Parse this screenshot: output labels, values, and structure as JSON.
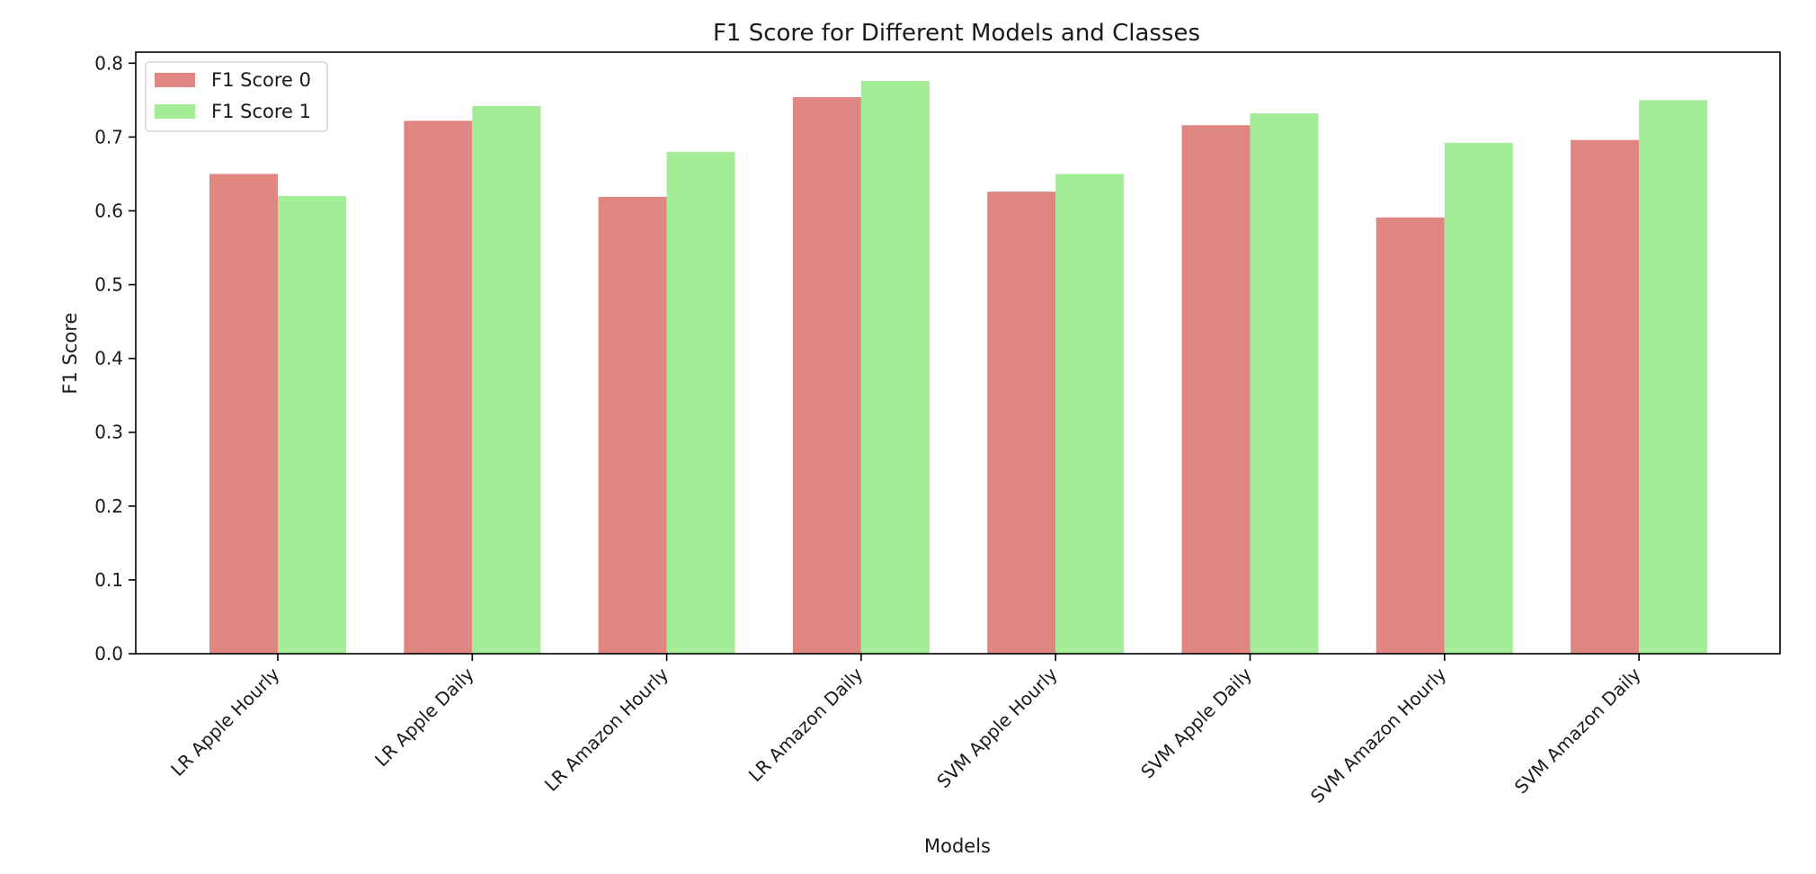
{
  "chart_data": {
    "type": "bar",
    "title": "F1 Score for Different Models and Classes",
    "xlabel": "Models",
    "ylabel": "F1 Score",
    "categories": [
      "LR Apple Hourly",
      "LR Apple Daily",
      "LR Amazon Hourly",
      "LR Amazon Daily",
      "SVM Apple Hourly",
      "SVM Apple Daily",
      "SVM Amazon Hourly",
      "SVM Amazon Daily"
    ],
    "series": [
      {
        "name": "F1 Score 0",
        "color": "#e08682",
        "values": [
          0.65,
          0.722,
          0.619,
          0.754,
          0.626,
          0.716,
          0.591,
          0.696
        ]
      },
      {
        "name": "F1 Score 1",
        "color": "#a4ec97",
        "values": [
          0.62,
          0.742,
          0.68,
          0.776,
          0.65,
          0.732,
          0.692,
          0.75
        ]
      }
    ],
    "ylim": [
      0,
      0.815
    ],
    "yticks": [
      "0.0",
      "0.1",
      "0.2",
      "0.3",
      "0.4",
      "0.5",
      "0.6",
      "0.7",
      "0.8"
    ],
    "grid": false,
    "legend_position": "top-left"
  }
}
